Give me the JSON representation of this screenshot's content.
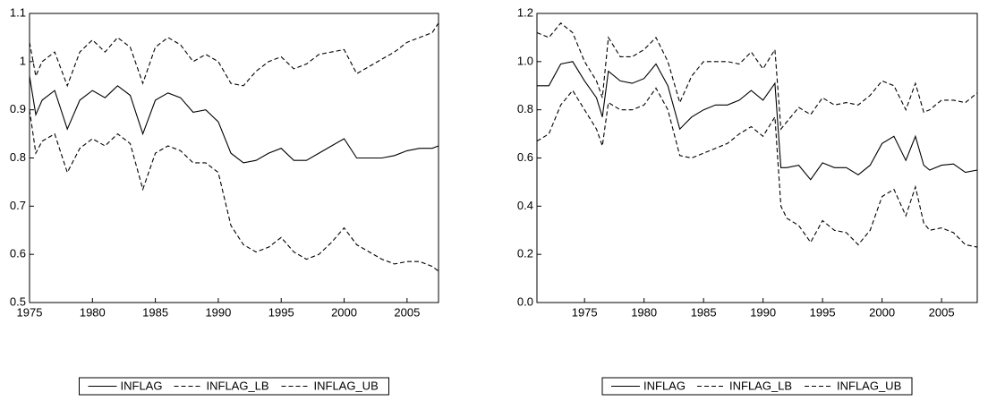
{
  "chart_data": [
    {
      "type": "line",
      "xlim": [
        1975,
        2007.5
      ],
      "xticks": [
        1975,
        1980,
        1985,
        1990,
        1995,
        2000,
        2005
      ],
      "ylim": [
        0.5,
        1.1
      ],
      "yticks": [
        0.5,
        0.6,
        0.7,
        0.8,
        0.9,
        1.0,
        1.1
      ],
      "grid": false,
      "x": [
        1975,
        1975.5,
        1976,
        1977,
        1978,
        1979,
        1980,
        1981,
        1982,
        1983,
        1984,
        1985,
        1986,
        1987,
        1988,
        1989,
        1990,
        1991,
        1992,
        1993,
        1994,
        1995,
        1996,
        1997,
        1998,
        1999,
        2000,
        2001,
        2002,
        2003,
        2004,
        2005,
        2006,
        2007,
        2007.5
      ],
      "series": [
        {
          "name": "INFLAG",
          "color": "#000000",
          "style": "solid",
          "values": [
            0.97,
            0.89,
            0.92,
            0.94,
            0.86,
            0.92,
            0.94,
            0.925,
            0.95,
            0.93,
            0.85,
            0.92,
            0.935,
            0.925,
            0.895,
            0.9,
            0.875,
            0.81,
            0.79,
            0.795,
            0.81,
            0.82,
            0.795,
            0.795,
            0.81,
            0.825,
            0.84,
            0.8,
            0.8,
            0.8,
            0.805,
            0.815,
            0.82,
            0.82,
            0.825
          ]
        },
        {
          "name": "INFLAG_LB",
          "color": "#000000",
          "style": "dashed",
          "values": [
            0.9,
            0.81,
            0.835,
            0.85,
            0.77,
            0.82,
            0.84,
            0.825,
            0.85,
            0.83,
            0.735,
            0.81,
            0.825,
            0.815,
            0.79,
            0.79,
            0.77,
            0.66,
            0.62,
            0.605,
            0.615,
            0.635,
            0.605,
            0.59,
            0.6,
            0.625,
            0.655,
            0.62,
            0.605,
            0.59,
            0.58,
            0.585,
            0.585,
            0.575,
            0.565
          ]
        },
        {
          "name": "INFLAG_UB",
          "color": "#000000",
          "style": "dashed",
          "values": [
            1.04,
            0.97,
            1.0,
            1.02,
            0.95,
            1.02,
            1.045,
            1.02,
            1.05,
            1.03,
            0.955,
            1.03,
            1.05,
            1.035,
            1.0,
            1.015,
            1.0,
            0.955,
            0.95,
            0.98,
            1.0,
            1.01,
            0.985,
            0.995,
            1.015,
            1.02,
            1.025,
            0.975,
            0.99,
            1.005,
            1.02,
            1.04,
            1.05,
            1.06,
            1.08
          ]
        }
      ]
    },
    {
      "type": "line",
      "xlim": [
        1971,
        2008
      ],
      "xticks": [
        1975,
        1980,
        1985,
        1990,
        1995,
        2000,
        2005
      ],
      "ylim": [
        0.0,
        1.2
      ],
      "yticks": [
        {
          "value": 0,
          "label": "0.0"
        },
        0.2,
        0.4,
        0.6,
        0.8,
        {
          "value": 1,
          "label": "1.0"
        },
        1.2
      ],
      "grid": false,
      "x": [
        1971,
        1972,
        1973,
        1974,
        1975,
        1976,
        1976.5,
        1977,
        1978,
        1979,
        1980,
        1981,
        1982,
        1983,
        1984,
        1985,
        1986,
        1987,
        1988,
        1989,
        1990,
        1991,
        1991.5,
        1992,
        1993,
        1994,
        1995,
        1996,
        1997,
        1998,
        1999,
        2000,
        2001,
        2002,
        2002.8,
        2003.5,
        2004,
        2005,
        2006,
        2007,
        2008
      ],
      "series": [
        {
          "name": "INFLAG",
          "color": "#000000",
          "style": "solid",
          "values": [
            0.9,
            0.9,
            0.99,
            1.0,
            0.92,
            0.85,
            0.77,
            0.96,
            0.92,
            0.91,
            0.93,
            0.99,
            0.9,
            0.72,
            0.77,
            0.8,
            0.82,
            0.82,
            0.84,
            0.88,
            0.84,
            0.91,
            0.56,
            0.56,
            0.57,
            0.51,
            0.58,
            0.56,
            0.56,
            0.53,
            0.57,
            0.66,
            0.69,
            0.59,
            0.69,
            0.57,
            0.55,
            0.57,
            0.575,
            0.54,
            0.55
          ]
        },
        {
          "name": "INFLAG_LB",
          "color": "#000000",
          "style": "dashed",
          "values": [
            0.67,
            0.7,
            0.82,
            0.88,
            0.8,
            0.72,
            0.65,
            0.83,
            0.8,
            0.8,
            0.82,
            0.89,
            0.8,
            0.61,
            0.6,
            0.62,
            0.64,
            0.66,
            0.7,
            0.73,
            0.69,
            0.77,
            0.4,
            0.35,
            0.32,
            0.25,
            0.34,
            0.3,
            0.29,
            0.24,
            0.3,
            0.44,
            0.47,
            0.36,
            0.48,
            0.33,
            0.3,
            0.31,
            0.29,
            0.24,
            0.23
          ]
        },
        {
          "name": "INFLAG_UB",
          "color": "#000000",
          "style": "dashed",
          "values": [
            1.12,
            1.1,
            1.16,
            1.12,
            1.0,
            0.92,
            0.85,
            1.1,
            1.02,
            1.02,
            1.05,
            1.1,
            1.0,
            0.83,
            0.94,
            1.0,
            1.0,
            1.0,
            0.99,
            1.04,
            0.97,
            1.05,
            0.72,
            0.75,
            0.81,
            0.78,
            0.85,
            0.82,
            0.83,
            0.82,
            0.86,
            0.92,
            0.9,
            0.8,
            0.91,
            0.79,
            0.8,
            0.84,
            0.84,
            0.83,
            0.87
          ]
        }
      ]
    }
  ]
}
